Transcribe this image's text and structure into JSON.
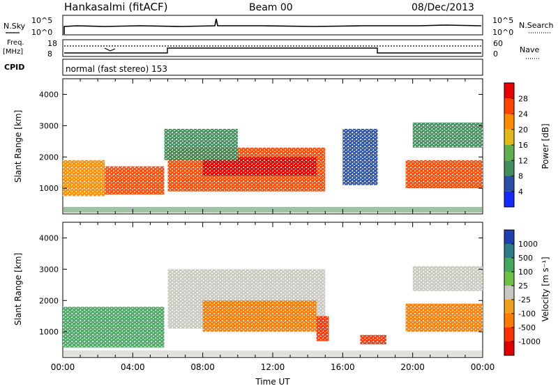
{
  "header": {
    "station": "Hankasalmi (fitACF)",
    "beam": "Beam 00",
    "date": "08/Dec/2013"
  },
  "sky_panel": {
    "left_label": "N.Sky",
    "right_label": "N.Search",
    "left_ticks": [
      "10^5",
      "10^0"
    ],
    "right_ticks": [
      "10^5",
      "10^0"
    ]
  },
  "freq_panel": {
    "left_label_1": "Freq.",
    "left_label_2": "[MHz]",
    "right_label": "Nave",
    "left_ticks": [
      "18",
      "8"
    ],
    "right_ticks": [
      "60",
      "0"
    ]
  },
  "cpid_panel": {
    "label": "CPID",
    "program": "normal (fast stereo) 153"
  },
  "colors": {
    "power": [
      "#1428ff",
      "#2a4fa8",
      "#3f8f5a",
      "#5fb04f",
      "#e0b81a",
      "#ff8a00",
      "#ff4500",
      "#e80000"
    ],
    "velocity": [
      "#2040b0",
      "#2f7a8a",
      "#45a860",
      "#6cc046",
      "#c8c8c0",
      "#f0a020",
      "#ff7a00",
      "#ff3000",
      "#e00000"
    ]
  },
  "chart_data": [
    {
      "type": "heatmap",
      "title": "Power",
      "ylabel": "Slant Range [km]",
      "xlabel": "",
      "x_range": [
        "00:00",
        "00:00"
      ],
      "ylim": [
        180,
        4500
      ],
      "y_ticks": [
        "1000",
        "2000",
        "3000",
        "4000"
      ],
      "colorbar": {
        "label": "Power [dB]",
        "range": [
          0,
          32
        ],
        "tick_labels": [
          "4",
          "8",
          "12",
          "16",
          "20",
          "24",
          "28"
        ]
      },
      "series": [
        {
          "name": "",
          "x_start_hour": 0.0,
          "x_end_hour": 2.4,
          "y_km_start": 750,
          "y_km_end": 1900,
          "level_dB": 22
        },
        {
          "name": "",
          "x_start_hour": 2.4,
          "x_end_hour": 5.8,
          "y_km_start": 800,
          "y_km_end": 1700,
          "level_dB": 26
        },
        {
          "name": "",
          "x_start_hour": 6.0,
          "x_end_hour": 15.0,
          "y_km_start": 900,
          "y_km_end": 2300,
          "level_dB": 24
        },
        {
          "name": "",
          "x_start_hour": 8.0,
          "x_end_hour": 14.5,
          "y_km_start": 1400,
          "y_km_end": 2000,
          "level_dB": 28
        },
        {
          "name": "",
          "x_start_hour": 5.8,
          "x_end_hour": 10.0,
          "y_km_start": 1900,
          "y_km_end": 2900,
          "level_dB": 10
        },
        {
          "name": "",
          "x_start_hour": 16.0,
          "x_end_hour": 18.0,
          "y_km_start": 1100,
          "y_km_end": 2900,
          "level_dB": 6
        },
        {
          "name": "",
          "x_start_hour": 19.6,
          "x_end_hour": 24.0,
          "y_km_start": 1000,
          "y_km_end": 1900,
          "level_dB": 26
        },
        {
          "name": "",
          "x_start_hour": 20.0,
          "x_end_hour": 24.0,
          "y_km_start": 2300,
          "y_km_end": 3100,
          "level_dB": 10
        }
      ]
    },
    {
      "type": "heatmap",
      "title": "Velocity",
      "ylabel": "Slant Range [km]",
      "xlabel": "Time UT",
      "x_ticks": [
        "00:00",
        "04:00",
        "08:00",
        "12:00",
        "16:00",
        "20:00",
        "00:00"
      ],
      "ylim": [
        180,
        4500
      ],
      "y_ticks": [
        "1000",
        "2000",
        "3000",
        "4000"
      ],
      "colorbar": {
        "label": "Velocity [m s⁻¹]",
        "tick_labels": [
          "1000",
          "500",
          "100",
          "25",
          "-25",
          "-100",
          "-500",
          "-1000"
        ]
      },
      "series": [
        {
          "name": "",
          "x_start_hour": 0.0,
          "x_end_hour": 5.8,
          "y_km_start": 500,
          "y_km_end": 1800,
          "velocity_ms": 200
        },
        {
          "name": "",
          "x_start_hour": 6.0,
          "x_end_hour": 15.0,
          "y_km_start": 1100,
          "y_km_end": 3000,
          "velocity_ms": 0
        },
        {
          "name": "",
          "x_start_hour": 8.0,
          "x_end_hour": 14.5,
          "y_km_start": 1000,
          "y_km_end": 2000,
          "velocity_ms": -150
        },
        {
          "name": "",
          "x_start_hour": 14.5,
          "x_end_hour": 15.2,
          "y_km_start": 700,
          "y_km_end": 1500,
          "velocity_ms": -600
        },
        {
          "name": "",
          "x_start_hour": 17.0,
          "x_end_hour": 18.5,
          "y_km_start": 600,
          "y_km_end": 900,
          "velocity_ms": -300
        },
        {
          "name": "",
          "x_start_hour": 19.6,
          "x_end_hour": 24.0,
          "y_km_start": 1000,
          "y_km_end": 1900,
          "velocity_ms": -200
        },
        {
          "name": "",
          "x_start_hour": 20.0,
          "x_end_hour": 24.0,
          "y_km_start": 2300,
          "y_km_end": 3100,
          "velocity_ms": 0
        }
      ]
    }
  ]
}
